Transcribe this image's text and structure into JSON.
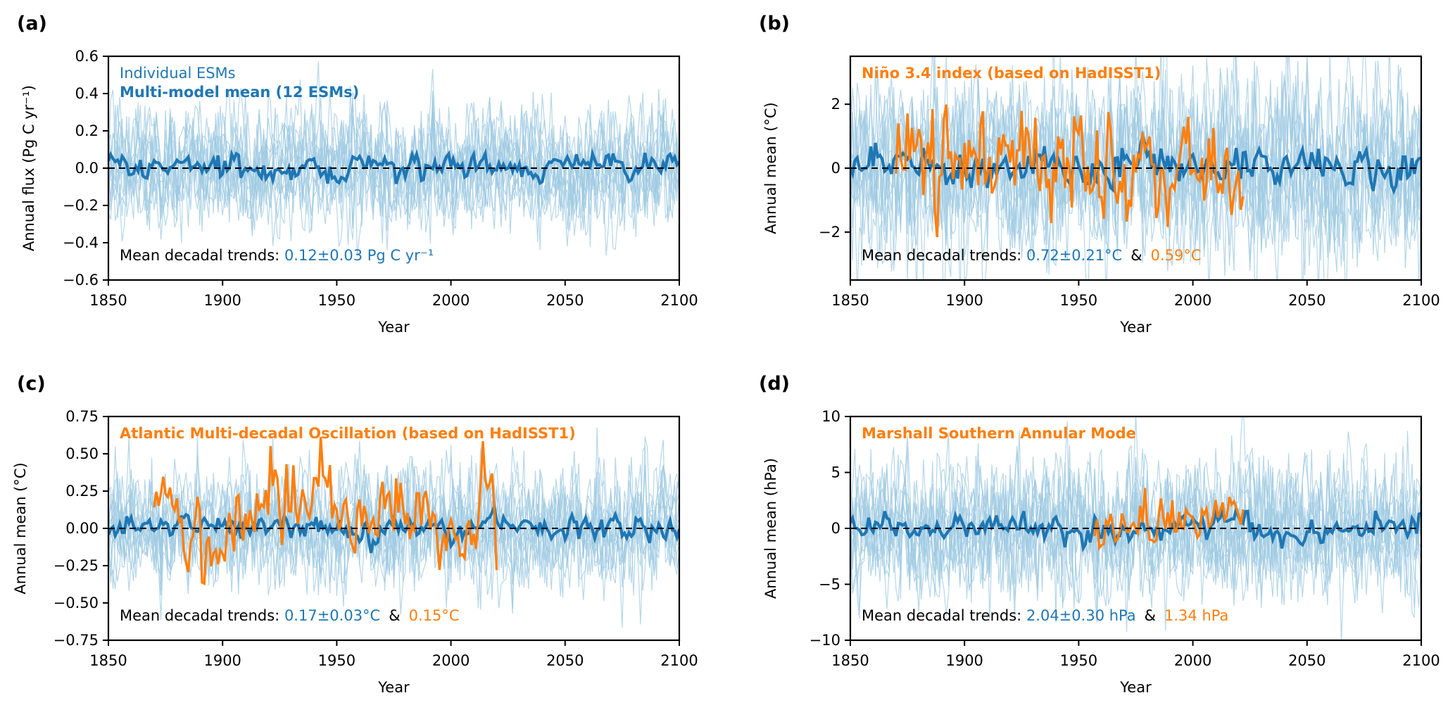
{
  "colors": {
    "model": "#1f77b4",
    "model_light": "#9ecae1",
    "obs": "#ff7f0e",
    "axis": "#000000",
    "zero_line": "#000000"
  },
  "chart_data": [
    {
      "type": "line",
      "panel_label": "(a)",
      "xlabel": "Year",
      "ylabel": "Annual flux (Pg C yr⁻¹)",
      "xlim": [
        1850,
        2100
      ],
      "ylim": [
        -0.6,
        0.6
      ],
      "xticks": [
        1850,
        1900,
        1950,
        2000,
        2050,
        2100
      ],
      "yticks": [
        "−0.6",
        "−0.4",
        "−0.2",
        "0.0",
        "0.2",
        "0.4",
        "0.6"
      ],
      "ytick_values": [
        -0.6,
        -0.4,
        -0.2,
        0.0,
        0.2,
        0.4,
        0.6
      ],
      "legend_text_light": "Individual ESMs",
      "legend_text_bold": "Multi-model mean (12 ESMs)",
      "obs_title": "",
      "trend_prefix": "Mean decadal trends:",
      "trend_model": "0.12±0.03 Pg C yr⁻¹",
      "trend_amp": "",
      "trend_obs": "",
      "series": {
        "individual_count": 12,
        "individual_amplitude": 0.12,
        "mean_amplitude": 0.035,
        "obs": null
      }
    },
    {
      "type": "line",
      "panel_label": "(b)",
      "xlabel": "Year",
      "ylabel": "Annual mean (°C)",
      "xlim": [
        1850,
        2100
      ],
      "ylim": [
        -3.5,
        3.5
      ],
      "xticks": [
        1850,
        1900,
        1950,
        2000,
        2050,
        2100
      ],
      "yticks": [
        "−2",
        "0",
        "2"
      ],
      "ytick_values": [
        -2,
        0,
        2
      ],
      "legend_text_light": "",
      "legend_text_bold": "",
      "obs_title": "Niño 3.4 index (based on HadISST1)",
      "trend_prefix": "Mean decadal trends:",
      "trend_model": "0.72±0.21°C",
      "trend_amp": "&",
      "trend_obs": "0.59°C",
      "series": {
        "individual_count": 12,
        "individual_amplitude": 1.1,
        "mean_amplitude": 0.3,
        "obs": {
          "start": 1870,
          "end": 2022,
          "amplitude": 0.75
        }
      }
    },
    {
      "type": "line",
      "panel_label": "(c)",
      "xlabel": "Year",
      "ylabel": "Annual mean (°C)",
      "xlim": [
        1850,
        2100
      ],
      "ylim": [
        -0.75,
        0.75
      ],
      "xticks": [
        1850,
        1900,
        1950,
        2000,
        2050,
        2100
      ],
      "yticks": [
        "−0.75",
        "−0.50",
        "−0.25",
        "0.00",
        "0.25",
        "0.50",
        "0.75"
      ],
      "ytick_values": [
        -0.75,
        -0.5,
        -0.25,
        0.0,
        0.25,
        0.5,
        0.75
      ],
      "legend_text_light": "",
      "legend_text_bold": "",
      "obs_title": "Atlantic Multi-decadal Oscillation (based on HadISST1)",
      "trend_prefix": "Mean decadal trends:",
      "trend_model": "0.17±0.03°C",
      "trend_amp": "&",
      "trend_obs": "0.15°C",
      "series": {
        "individual_count": 12,
        "individual_amplitude": 0.15,
        "mean_amplitude": 0.04,
        "obs": {
          "start": 1870,
          "end": 2020,
          "amplitude": 0.14
        }
      }
    },
    {
      "type": "line",
      "panel_label": "(d)",
      "xlabel": "Year",
      "ylabel": "Annual mean (hPa)",
      "xlim": [
        1850,
        2100
      ],
      "ylim": [
        -10,
        10
      ],
      "xticks": [
        1850,
        1900,
        1950,
        2000,
        2050,
        2100
      ],
      "yticks": [
        "−10",
        "−5",
        "0",
        "5",
        "10"
      ],
      "ytick_values": [
        -10,
        -5,
        0,
        5,
        10
      ],
      "legend_text_light": "",
      "legend_text_bold": "",
      "obs_title": "Marshall Southern Annular Mode",
      "trend_prefix": "Mean decadal trends:",
      "trend_model": "2.04±0.30 hPa",
      "trend_amp": "&",
      "trend_obs": "1.34 hPa",
      "series": {
        "individual_count": 12,
        "individual_amplitude": 2.3,
        "mean_amplitude": 0.6,
        "obs": {
          "start": 1957,
          "end": 2022,
          "amplitude": 1.3
        }
      }
    }
  ]
}
